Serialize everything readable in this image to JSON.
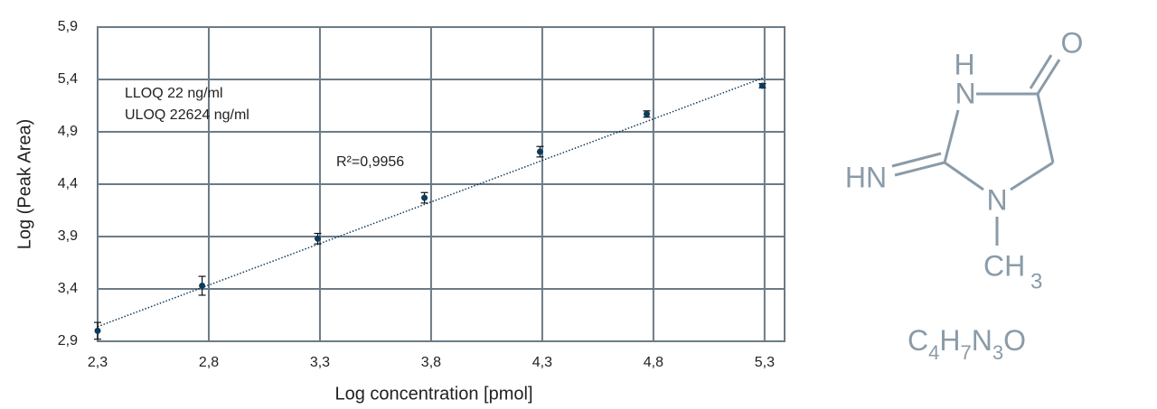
{
  "chart_data": {
    "type": "scatter",
    "xlabel": "Log concentration [pmol]",
    "ylabel": "Log (Peak Area)",
    "xlim": [
      2.3,
      5.39
    ],
    "ylim": [
      2.9,
      5.9
    ],
    "xticks": [
      {
        "value": 2.3,
        "label": "2,3"
      },
      {
        "value": 2.8,
        "label": "2,8"
      },
      {
        "value": 3.3,
        "label": "3,3"
      },
      {
        "value": 3.8,
        "label": "3,8"
      },
      {
        "value": 4.3,
        "label": "4,3"
      },
      {
        "value": 4.8,
        "label": "4,8"
      },
      {
        "value": 5.3,
        "label": "5,3"
      }
    ],
    "yticks": [
      {
        "value": 2.9,
        "label": "2,9"
      },
      {
        "value": 3.4,
        "label": "3,4"
      },
      {
        "value": 3.9,
        "label": "3,9"
      },
      {
        "value": 4.4,
        "label": "4,4"
      },
      {
        "value": 4.9,
        "label": "4,9"
      },
      {
        "value": 5.4,
        "label": "5,4"
      },
      {
        "value": 5.9,
        "label": "5,9"
      }
    ],
    "grid": true,
    "color": "#0d3b5c",
    "grid_color": "#6b7b87",
    "x": [
      2.3,
      2.77,
      3.29,
      3.77,
      4.29,
      4.77,
      5.29
    ],
    "values": [
      3.0,
      3.43,
      3.88,
      4.27,
      4.71,
      5.07,
      5.34
    ],
    "errors": [
      0.08,
      0.09,
      0.05,
      0.05,
      0.05,
      0.03,
      0.02
    ],
    "trendline": {
      "x": [
        2.3,
        5.3
      ],
      "y": [
        3.04,
        5.42
      ]
    },
    "annotations": [
      "LLOQ 22 ng/ml",
      "ULOQ 22624 ng/ml",
      "R²=0,9956"
    ]
  },
  "molecule": {
    "atoms": [
      "O",
      "H",
      "N",
      "HN",
      "N",
      "CH",
      "3"
    ],
    "formula": [
      "C",
      "4",
      "H",
      "7",
      "N",
      "3",
      "O"
    ]
  }
}
